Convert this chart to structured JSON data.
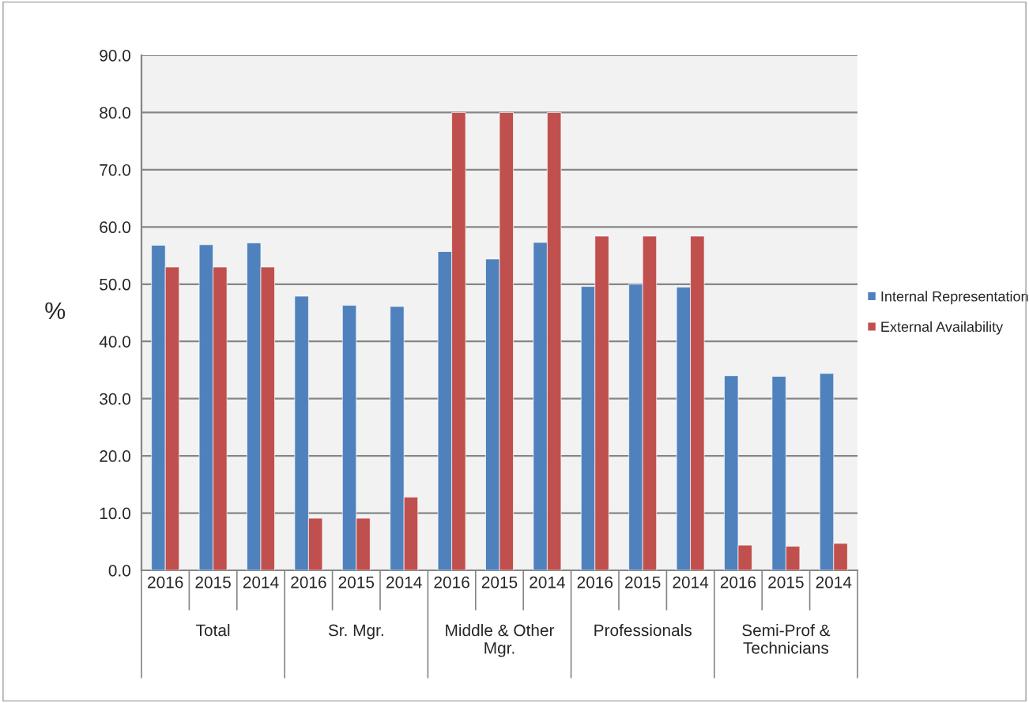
{
  "chart_data": {
    "type": "bar",
    "categories": [
      "2016",
      "2015",
      "2014",
      "2016",
      "2015",
      "2014",
      "2016",
      "2015",
      "2014",
      "2016",
      "2015",
      "2014",
      "2016",
      "2015",
      "2014"
    ],
    "annotations": [
      "Total",
      "Sr. Mgr.",
      "Middle & Other Mgr.",
      "Professionals",
      "Semi-Prof & Technicians"
    ],
    "ylabel": "%",
    "series": [
      {
        "name": "Internal Representation",
        "color": "#4f81bd",
        "values": [
          56.8,
          56.9,
          57.2,
          47.9,
          46.3,
          46.1,
          55.7,
          54.4,
          57.3,
          49.6,
          50.0,
          49.5,
          34.0,
          33.9,
          34.4
        ]
      },
      {
        "name": "External Availability",
        "color": "#c0504d",
        "values": [
          53.0,
          53.0,
          53.0,
          9.1,
          9.1,
          12.8,
          80.0,
          80.0,
          80.0,
          58.4,
          58.4,
          58.4,
          4.4,
          4.2,
          4.7
        ]
      }
    ],
    "ylim": [
      0,
      90
    ],
    "yticks": [
      {
        "value": 0,
        "label": "0.0"
      },
      {
        "value": 10,
        "label": "10.0"
      },
      {
        "value": 20,
        "label": "20.0"
      },
      {
        "value": 30,
        "label": "30.0"
      },
      {
        "value": 40,
        "label": "40.0"
      },
      {
        "value": 50,
        "label": "50.0"
      },
      {
        "value": 60,
        "label": "60.0"
      },
      {
        "value": 70,
        "label": "70.0"
      },
      {
        "value": 80,
        "label": "80.0"
      },
      {
        "value": 90,
        "label": "90.0"
      }
    ],
    "grid": "y",
    "legend": "right"
  }
}
